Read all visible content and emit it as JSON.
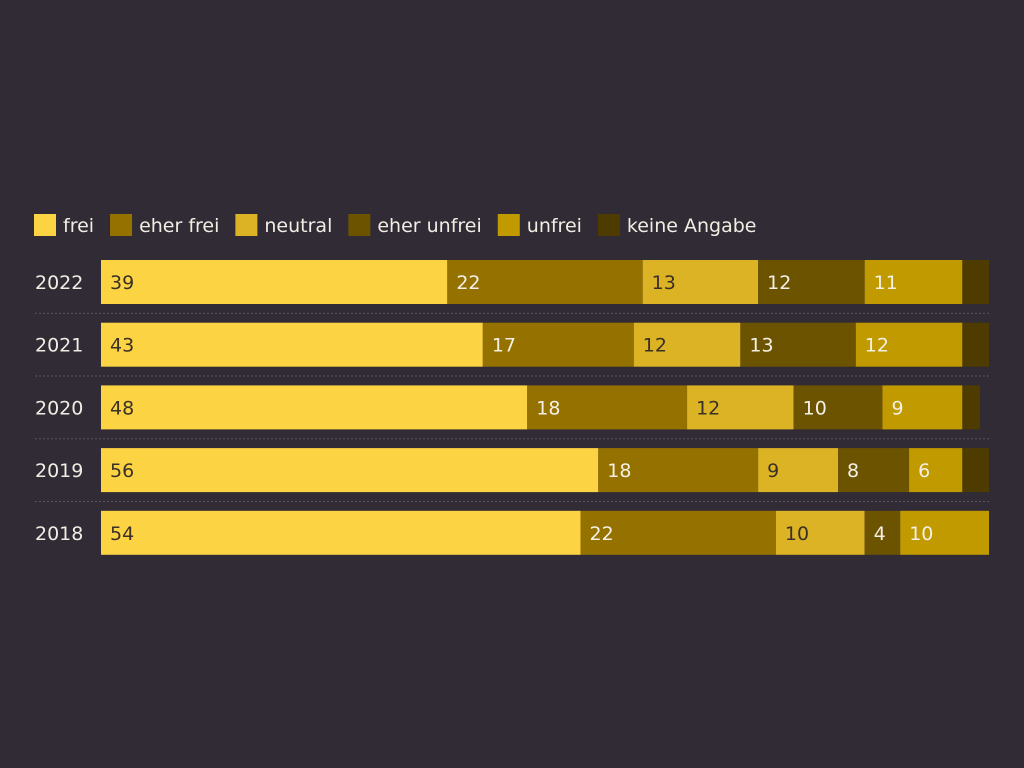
{
  "chart_data": {
    "type": "bar",
    "orientation": "horizontal",
    "stacked": true,
    "title": "",
    "xlabel": "",
    "ylabel": "",
    "xlim": [
      0,
      100
    ],
    "grid": false,
    "legend_position": "top-left",
    "background_color": "#302b34",
    "categories": [
      "2022",
      "2021",
      "2020",
      "2019",
      "2018"
    ],
    "series": [
      {
        "name": "frei",
        "color": "#fcd443",
        "label_tone": "dark",
        "values": [
          39,
          43,
          48,
          56,
          54
        ]
      },
      {
        "name": "eher frei",
        "color": "#957100",
        "label_tone": "light",
        "values": [
          22,
          17,
          18,
          18,
          22
        ]
      },
      {
        "name": "neutral",
        "color": "#dcb324",
        "label_tone": "dark",
        "values": [
          13,
          12,
          12,
          9,
          10
        ]
      },
      {
        "name": "eher unfrei",
        "color": "#6c5300",
        "label_tone": "light",
        "values": [
          12,
          13,
          10,
          8,
          4
        ]
      },
      {
        "name": "unfrei",
        "color": "#c19a00",
        "label_tone": "light",
        "values": [
          11,
          12,
          9,
          6,
          10
        ]
      },
      {
        "name": "keine Angabe",
        "color": "#4e3b00",
        "label_tone": "light",
        "values": [
          3,
          3,
          2,
          3,
          0
        ]
      }
    ],
    "labeled_series_count": 5
  }
}
